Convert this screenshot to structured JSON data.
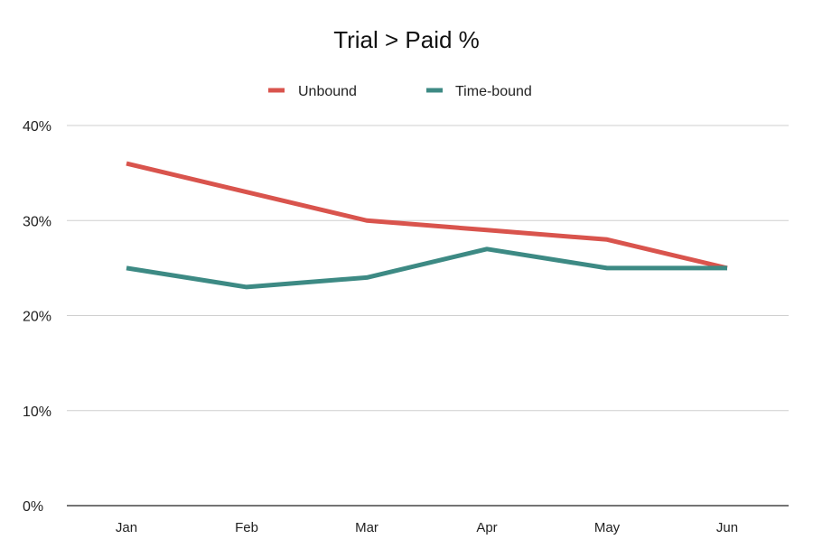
{
  "chart_data": {
    "type": "line",
    "title": "Trial > Paid %",
    "categories": [
      "Jan",
      "Feb",
      "Mar",
      "Apr",
      "May",
      "Jun"
    ],
    "y_ticks": [
      "0%",
      "10%",
      "20%",
      "30%",
      "40%"
    ],
    "ylim": [
      0,
      40
    ],
    "grid": true,
    "legend_position": "top-center",
    "series": [
      {
        "name": "Unbound",
        "color": "#d9544d",
        "values": [
          36,
          33,
          30,
          29,
          28,
          25
        ]
      },
      {
        "name": "Time-bound",
        "color": "#3d8a84",
        "values": [
          25,
          23,
          24,
          27,
          25,
          25
        ]
      }
    ]
  }
}
